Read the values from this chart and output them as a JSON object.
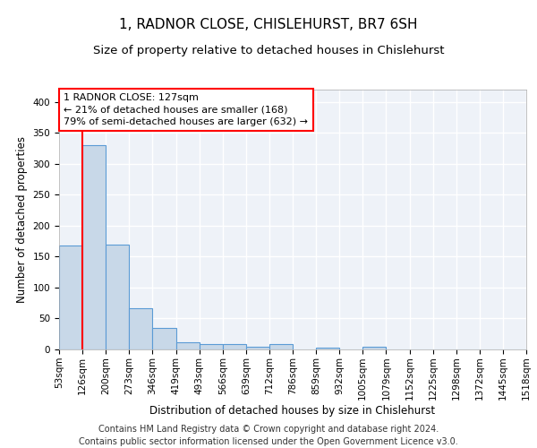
{
  "title": "1, RADNOR CLOSE, CHISLEHURST, BR7 6SH",
  "subtitle": "Size of property relative to detached houses in Chislehurst",
  "xlabel": "Distribution of detached houses by size in Chislehurst",
  "ylabel": "Number of detached properties",
  "bin_labels": [
    "53sqm",
    "126sqm",
    "200sqm",
    "273sqm",
    "346sqm",
    "419sqm",
    "493sqm",
    "566sqm",
    "639sqm",
    "712sqm",
    "786sqm",
    "859sqm",
    "932sqm",
    "1005sqm",
    "1079sqm",
    "1152sqm",
    "1225sqm",
    "1298sqm",
    "1372sqm",
    "1445sqm",
    "1518sqm"
  ],
  "bar_heights": [
    168,
    330,
    170,
    67,
    35,
    11,
    9,
    8,
    4,
    8,
    0,
    3,
    0,
    4,
    0,
    0,
    0,
    0,
    0,
    0
  ],
  "bar_color": "#c8d8e8",
  "bar_edge_color": "#5b9bd5",
  "annotation_line1": "1 RADNOR CLOSE: 127sqm",
  "annotation_line2": "← 21% of detached houses are smaller (168)",
  "annotation_line3": "79% of semi-detached houses are larger (632) →",
  "annotation_box_color": "white",
  "annotation_border_color": "red",
  "property_line_color": "red",
  "ylim": [
    0,
    420
  ],
  "yticks": [
    0,
    50,
    100,
    150,
    200,
    250,
    300,
    350,
    400
  ],
  "footer_line1": "Contains HM Land Registry data © Crown copyright and database right 2024.",
  "footer_line2": "Contains public sector information licensed under the Open Government Licence v3.0.",
  "background_color": "#eef2f8",
  "grid_color": "white",
  "title_fontsize": 11,
  "subtitle_fontsize": 9.5,
  "label_fontsize": 8.5,
  "tick_fontsize": 7.5,
  "annotation_fontsize": 8,
  "footer_fontsize": 7
}
